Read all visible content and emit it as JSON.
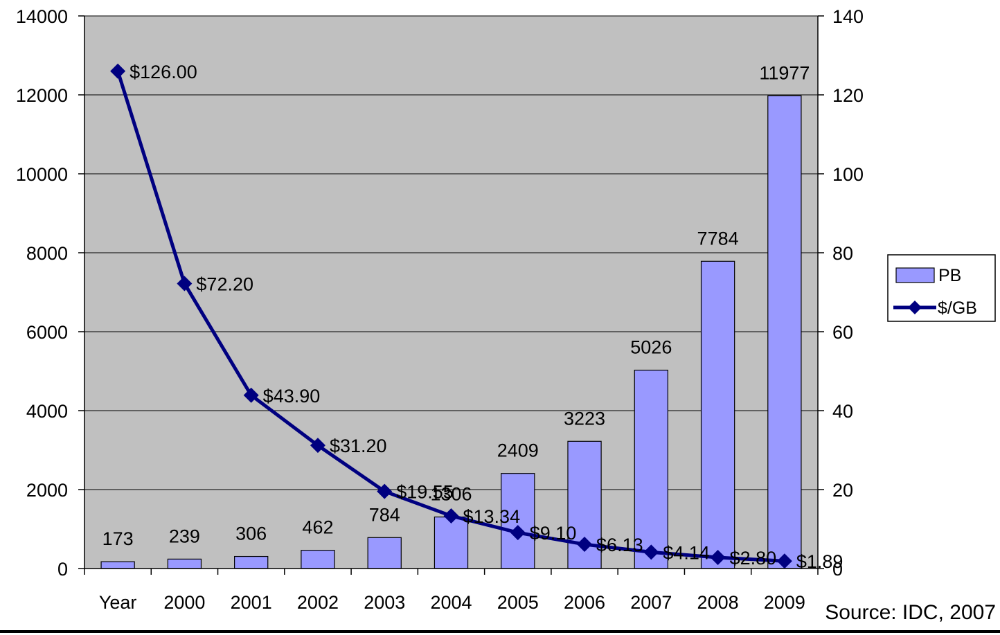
{
  "chart_data": {
    "type": "bar+line",
    "categories": [
      "Year",
      "2000",
      "2001",
      "2002",
      "2003",
      "2004",
      "2005",
      "2006",
      "2007",
      "2008",
      "2009"
    ],
    "series": [
      {
        "name": "PB",
        "type": "bar",
        "axis": "left",
        "values": [
          173,
          239,
          306,
          462,
          784,
          1306,
          2409,
          3223,
          5026,
          7784,
          11977
        ],
        "labels": [
          "173",
          "239",
          "306",
          "462",
          "784",
          "1306",
          "2409",
          "3223",
          "5026",
          "7784",
          "11977"
        ],
        "color": "#9999ff"
      },
      {
        "name": "$/GB",
        "type": "line",
        "axis": "right",
        "values": [
          126.0,
          72.2,
          43.9,
          31.2,
          19.55,
          13.34,
          9.1,
          6.13,
          4.14,
          2.8,
          1.89
        ],
        "labels": [
          "$126.00",
          "$72.20",
          "$43.90",
          "$31.20",
          "$19.55",
          "$13.34",
          "$9.10",
          "$6.13",
          "$4.14",
          "$2.80",
          "$1.89"
        ],
        "color": "#000080"
      }
    ],
    "left_axis": {
      "min": 0,
      "max": 14000,
      "ticks": [
        "0",
        "2000",
        "4000",
        "6000",
        "8000",
        "10000",
        "12000",
        "14000"
      ]
    },
    "right_axis": {
      "min": 0,
      "max": 140,
      "ticks": [
        "0",
        "20",
        "40",
        "60",
        "80",
        "100",
        "120",
        "140"
      ]
    },
    "plot_background": "#c0c0c0",
    "grid": true,
    "legend": "right",
    "title": "",
    "xlabel": "",
    "ylabel": ""
  },
  "source_note": "Source: IDC, 2007"
}
